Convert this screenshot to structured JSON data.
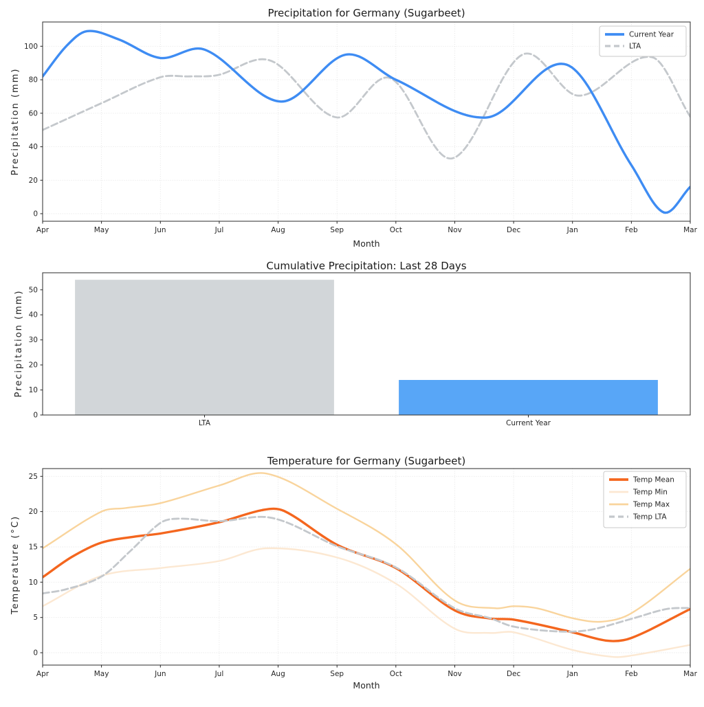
{
  "figure": {
    "background": "#ffffff",
    "text_color": "#262626",
    "spine_color": "#3c3c3c",
    "grid_color": "#dedede"
  },
  "chart_data": [
    {
      "id": "precipitation-line",
      "type": "line",
      "title": "Precipitation for Germany (Sugarbeet)",
      "xlabel": "Month",
      "ylabel": "Precipitation (mm)",
      "x_tick_labels": [
        "Apr",
        "May",
        "Jun",
        "Jul",
        "Aug",
        "Sep",
        "Oct",
        "Nov",
        "Dec",
        "Jan",
        "Feb",
        "Mar"
      ],
      "x_unit": "month index, 0 = Apr ... 11 = Mar",
      "y_ticks": [
        0,
        20,
        40,
        60,
        80,
        100
      ],
      "ylim": [
        -4.5,
        114.5
      ],
      "grid": true,
      "legend": {
        "position": "upper right",
        "labels": [
          "Current Year",
          "LTA"
        ]
      },
      "series": [
        {
          "name": "Current Year",
          "color": "#3e8cf3",
          "line_width": 3.4,
          "dash": null,
          "z": 2,
          "points": [
            [
              0,
              82
            ],
            [
              0.4,
              100
            ],
            [
              0.75,
              109
            ],
            [
              1.3,
              104
            ],
            [
              2,
              93
            ],
            [
              2.75,
              98
            ],
            [
              4.05,
              67
            ],
            [
              5.15,
              95
            ],
            [
              6,
              80
            ],
            [
              7.55,
              57.5
            ],
            [
              8.9,
              89
            ],
            [
              10,
              29
            ],
            [
              10.55,
              0.8
            ],
            [
              11,
              16
            ]
          ]
        },
        {
          "name": "LTA",
          "color": "#c4c8cc",
          "line_width": 2.8,
          "dash": "9.5 4.5",
          "z": 1,
          "points": [
            [
              0,
              50
            ],
            [
              1,
              66
            ],
            [
              2,
              81.5
            ],
            [
              2.5,
              82
            ],
            [
              3,
              83
            ],
            [
              3.65,
              92
            ],
            [
              4,
              89
            ],
            [
              5,
              57.5
            ],
            [
              5.9,
              81
            ],
            [
              6.95,
              33
            ],
            [
              8.15,
              95
            ],
            [
              9.1,
              70.5
            ],
            [
              10.35,
              93.5
            ],
            [
              11,
              58
            ]
          ]
        }
      ]
    },
    {
      "id": "cumulative-precip-bar",
      "type": "bar",
      "title": "Cumulative Precipitation: Last 28 Days",
      "xlabel": null,
      "ylabel": "Precipitation (mm)",
      "categories": [
        "LTA",
        "Current Year"
      ],
      "values": [
        54,
        14
      ],
      "bar_colors": [
        "#d2d6d9",
        "#58a6f7"
      ],
      "y_ticks": [
        0,
        10,
        20,
        30,
        40,
        50
      ],
      "ylim": [
        0,
        56.8
      ],
      "grid": false
    },
    {
      "id": "temperature-line",
      "type": "line",
      "title": "Temperature for Germany (Sugarbeet)",
      "xlabel": "Month",
      "ylabel": "Temperature (°C)",
      "x_tick_labels": [
        "Apr",
        "May",
        "Jun",
        "Jul",
        "Aug",
        "Sep",
        "Oct",
        "Nov",
        "Dec",
        "Jan",
        "Feb",
        "Mar"
      ],
      "x_unit": "month index, 0 = Apr ... 11 = Mar",
      "y_ticks": [
        0,
        5,
        10,
        15,
        20,
        25
      ],
      "ylim": [
        -1.75,
        26.1
      ],
      "grid": true,
      "legend": {
        "position": "upper right",
        "labels": [
          "Temp Mean",
          "Temp Min",
          "Temp Max",
          "Temp LTA"
        ]
      },
      "series": [
        {
          "name": "Temp Mean",
          "color": "#f4661e",
          "line_width": 3.4,
          "dash": null,
          "z": 3,
          "points": [
            [
              0,
              10.7
            ],
            [
              0.5,
              13.6
            ],
            [
              1,
              15.6
            ],
            [
              1.6,
              16.5
            ],
            [
              2,
              16.9
            ],
            [
              3,
              18.5
            ],
            [
              3.75,
              20.25
            ],
            [
              4.1,
              20.1
            ],
            [
              5,
              15.3
            ],
            [
              6,
              12
            ],
            [
              7,
              6
            ],
            [
              7.6,
              4.85
            ],
            [
              8,
              4.7
            ],
            [
              9,
              2.9
            ],
            [
              9.6,
              1.7
            ],
            [
              10,
              2.1
            ],
            [
              11,
              6.2
            ]
          ]
        },
        {
          "name": "Temp Min",
          "color": "#fce8d2",
          "line_width": 2.4,
          "dash": null,
          "z": 1,
          "points": [
            [
              0,
              6.6
            ],
            [
              1,
              10.9
            ],
            [
              2,
              12
            ],
            [
              3,
              13
            ],
            [
              3.8,
              14.8
            ],
            [
              5,
              13.5
            ],
            [
              6,
              9.8
            ],
            [
              7,
              3.4
            ],
            [
              7.6,
              2.8
            ],
            [
              8,
              2.9
            ],
            [
              9,
              0.4
            ],
            [
              9.7,
              -0.6
            ],
            [
              10,
              -0.4
            ],
            [
              11,
              1.1
            ]
          ]
        },
        {
          "name": "Temp Max",
          "color": "#f9d49c",
          "line_width": 2.4,
          "dash": null,
          "z": 2,
          "points": [
            [
              0,
              14.8
            ],
            [
              1,
              20
            ],
            [
              1.4,
              20.5
            ],
            [
              2,
              21.2
            ],
            [
              3,
              23.7
            ],
            [
              3.8,
              25.4
            ],
            [
              5,
              20.4
            ],
            [
              6,
              15.4
            ],
            [
              7,
              7.4
            ],
            [
              7.7,
              6.3
            ],
            [
              8,
              6.6
            ],
            [
              8.4,
              6.3
            ],
            [
              9,
              4.9
            ],
            [
              9.5,
              4.4
            ],
            [
              10,
              5.6
            ],
            [
              11,
              11.9
            ]
          ]
        },
        {
          "name": "Temp LTA",
          "color": "#c4c8cc",
          "line_width": 2.8,
          "dash": "9.5 4.5",
          "z": 4,
          "points": [
            [
              0,
              8.4
            ],
            [
              0.4,
              9
            ],
            [
              1,
              10.8
            ],
            [
              1.5,
              14.5
            ],
            [
              2,
              18.4
            ],
            [
              2.3,
              19
            ],
            [
              3,
              18.65
            ],
            [
              3.9,
              19.1
            ],
            [
              5,
              15.1
            ],
            [
              6,
              12.1
            ],
            [
              7,
              6.3
            ],
            [
              7.6,
              4.9
            ],
            [
              8,
              3.7
            ],
            [
              8.8,
              3
            ],
            [
              9.3,
              3.25
            ],
            [
              10,
              4.8
            ],
            [
              10.6,
              6.2
            ],
            [
              11,
              6.35
            ]
          ]
        }
      ]
    }
  ]
}
